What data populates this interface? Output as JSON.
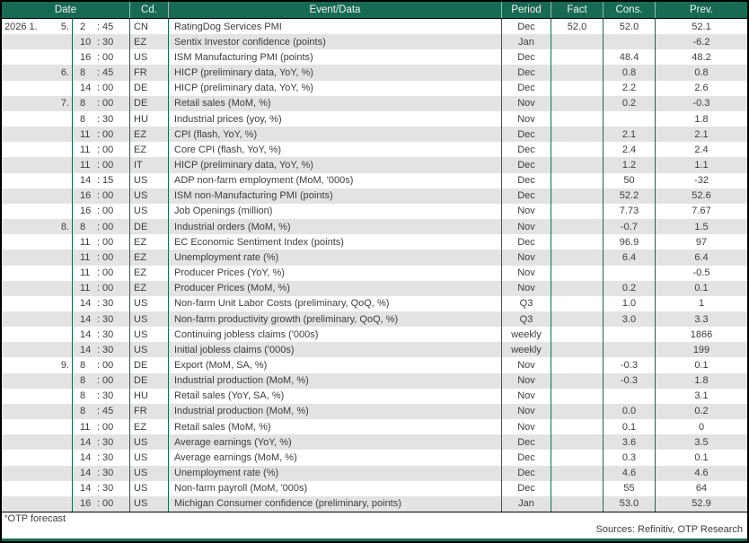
{
  "table": {
    "header": {
      "date": "Date",
      "cd": "Cd.",
      "event": "Event/Data",
      "period": "Period",
      "fact": "Fact",
      "cons": "Cons.",
      "prev": "Prev."
    },
    "rows": [
      {
        "year_month": "2026 1.",
        "day": "5.",
        "hour": "2",
        "min": "45",
        "cd": "CN",
        "event": "RatingDog Services PMI",
        "period": "Dec",
        "fact": "52.0",
        "cons": "52.0",
        "prev": "52.1"
      },
      {
        "hour": "10",
        "min": "30",
        "cd": "EZ",
        "event": "Sentix Investor confidence (points)",
        "period": "Jan",
        "prev": "-6.2"
      },
      {
        "hour": "16",
        "min": "00",
        "cd": "US",
        "event": "ISM Manufacturing PMI (points)",
        "period": "Dec",
        "cons": "48.4",
        "prev": "48.2"
      },
      {
        "day": "6.",
        "hour": "8",
        "min": "45",
        "cd": "FR",
        "event": "HICP (preliminary data, YoY, %)",
        "period": "Dec",
        "cons": "0.8",
        "prev": "0.8"
      },
      {
        "hour": "14",
        "min": "00",
        "cd": "DE",
        "event": "HICP (preliminary data, YoY, %)",
        "period": "Dec",
        "cons": "2.2",
        "prev": "2.6"
      },
      {
        "day": "7.",
        "hour": "8",
        "min": "00",
        "cd": "DE",
        "event": "Retail sales (MoM, %)",
        "period": "Nov",
        "cons": "0.2",
        "prev": "-0.3"
      },
      {
        "hour": "8",
        "min": "30",
        "cd": "HU",
        "event": "Industrial prices (yoy, %)",
        "period": "Nov",
        "prev": "1.8"
      },
      {
        "hour": "11",
        "min": "00",
        "cd": "EZ",
        "event": "CPI (flash, YoY, %)",
        "period": "Dec",
        "cons": "2.1",
        "prev": "2.1"
      },
      {
        "hour": "11",
        "min": "00",
        "cd": "EZ",
        "event": "Core CPI (flash, YoY, %)",
        "period": "Dec",
        "cons": "2.4",
        "prev": "2.4"
      },
      {
        "hour": "11",
        "min": "00",
        "cd": "IT",
        "event": "HICP (preliminary data, YoY, %)",
        "period": "Dec",
        "cons": "1.2",
        "prev": "1.1"
      },
      {
        "hour": "14",
        "min": "15",
        "cd": "US",
        "event": "ADP non-farm employment (MoM, '000s)",
        "period": "Dec",
        "cons": "50",
        "prev": "-32"
      },
      {
        "hour": "16",
        "min": "00",
        "cd": "US",
        "event": "ISM non-Manufacturing PMI (points)",
        "period": "Dec",
        "cons": "52.2",
        "prev": "52.6"
      },
      {
        "hour": "16",
        "min": "00",
        "cd": "US",
        "event": "Job Openings (million)",
        "period": "Nov",
        "cons": "7.73",
        "prev": "7.67"
      },
      {
        "day": "8.",
        "hour": "8",
        "min": "00",
        "cd": "DE",
        "event": "Industrial orders (MoM, %)",
        "period": "Nov",
        "cons": "-0.7",
        "prev": "1.5"
      },
      {
        "hour": "11",
        "min": "00",
        "cd": "EZ",
        "event": "EC Economic Sentiment Index (points)",
        "period": "Dec",
        "cons": "96.9",
        "prev": "97"
      },
      {
        "hour": "11",
        "min": "00",
        "cd": "EZ",
        "event": "Unemployment rate (%)",
        "period": "Nov",
        "cons": "6.4",
        "prev": "6.4"
      },
      {
        "hour": "11",
        "min": "00",
        "cd": "EZ",
        "event": "Producer Prices (YoY, %)",
        "period": "Nov",
        "prev": "-0.5"
      },
      {
        "hour": "11",
        "min": "00",
        "cd": "EZ",
        "event": "Producer Prices (MoM, %)",
        "period": "Nov",
        "cons": "0.2",
        "prev": "0.1"
      },
      {
        "hour": "14",
        "min": "30",
        "cd": "US",
        "event": "Non-farm Unit Labor Costs (preliminary, QoQ, %)",
        "period": "Q3",
        "cons": "1.0",
        "prev": "1"
      },
      {
        "hour": "14",
        "min": "30",
        "cd": "US",
        "event": "Non-farm productivity growth (preliminary, QoQ, %)",
        "period": "Q3",
        "cons": "3.0",
        "prev": "3.3"
      },
      {
        "hour": "14",
        "min": "30",
        "cd": "US",
        "event": "Continuing jobless claims ('000s)",
        "period": "weekly",
        "prev": "1866"
      },
      {
        "hour": "14",
        "min": "30",
        "cd": "US",
        "event": "Initial jobless claims ('000s)",
        "period": "weekly",
        "prev": "199"
      },
      {
        "day": "9.",
        "hour": "8",
        "min": "00",
        "cd": "DE",
        "event": "Export (MoM, SA, %)",
        "period": "Nov",
        "cons": "-0.3",
        "prev": "0.1"
      },
      {
        "hour": "8",
        "min": "00",
        "cd": "DE",
        "event": "Industrial production (MoM, %)",
        "period": "Nov",
        "cons": "-0.3",
        "prev": "1.8"
      },
      {
        "hour": "8",
        "min": "30",
        "cd": "HU",
        "event": "Retail sales (YoY, SA, %)",
        "period": "Nov",
        "prev": "3.1"
      },
      {
        "hour": "8",
        "min": "45",
        "cd": "FR",
        "event": "Industrial production (MoM, %)",
        "period": "Nov",
        "cons": "0.0",
        "prev": "0.2"
      },
      {
        "hour": "11",
        "min": "00",
        "cd": "EZ",
        "event": "Retail sales (MoM, %)",
        "period": "Nov",
        "cons": "0.1",
        "prev": "0"
      },
      {
        "hour": "14",
        "min": "30",
        "cd": "US",
        "event": "Average earnings (YoY, %)",
        "period": "Dec",
        "cons": "3.6",
        "prev": "3.5"
      },
      {
        "hour": "14",
        "min": "30",
        "cd": "US",
        "event": "Average earnings (MoM, %)",
        "period": "Dec",
        "cons": "0.3",
        "prev": "0.1"
      },
      {
        "hour": "14",
        "min": "30",
        "cd": "US",
        "event": "Unemployment rate (%)",
        "period": "Dec",
        "cons": "4.6",
        "prev": "4.6"
      },
      {
        "hour": "14",
        "min": "30",
        "cd": "US",
        "event": "Non-farm payroll (MoM, '000s)",
        "period": "Dec",
        "cons": "55",
        "prev": "64"
      },
      {
        "hour": "16",
        "min": "00",
        "cd": "US",
        "event": "Michigan Consumer confidence (preliminary, points)",
        "period": "Jan",
        "cons": "53.0",
        "prev": "52.9"
      }
    ]
  },
  "footer": {
    "footnote_marker": "*",
    "footnote": "OTP forecast",
    "sources": "Sources: Refinitiv, OTP Research"
  },
  "colors": {
    "header_green": "#176a53",
    "stripe_gray": "#e3e3e3",
    "text": "#3d3d3d",
    "frame_black": "#000000"
  }
}
